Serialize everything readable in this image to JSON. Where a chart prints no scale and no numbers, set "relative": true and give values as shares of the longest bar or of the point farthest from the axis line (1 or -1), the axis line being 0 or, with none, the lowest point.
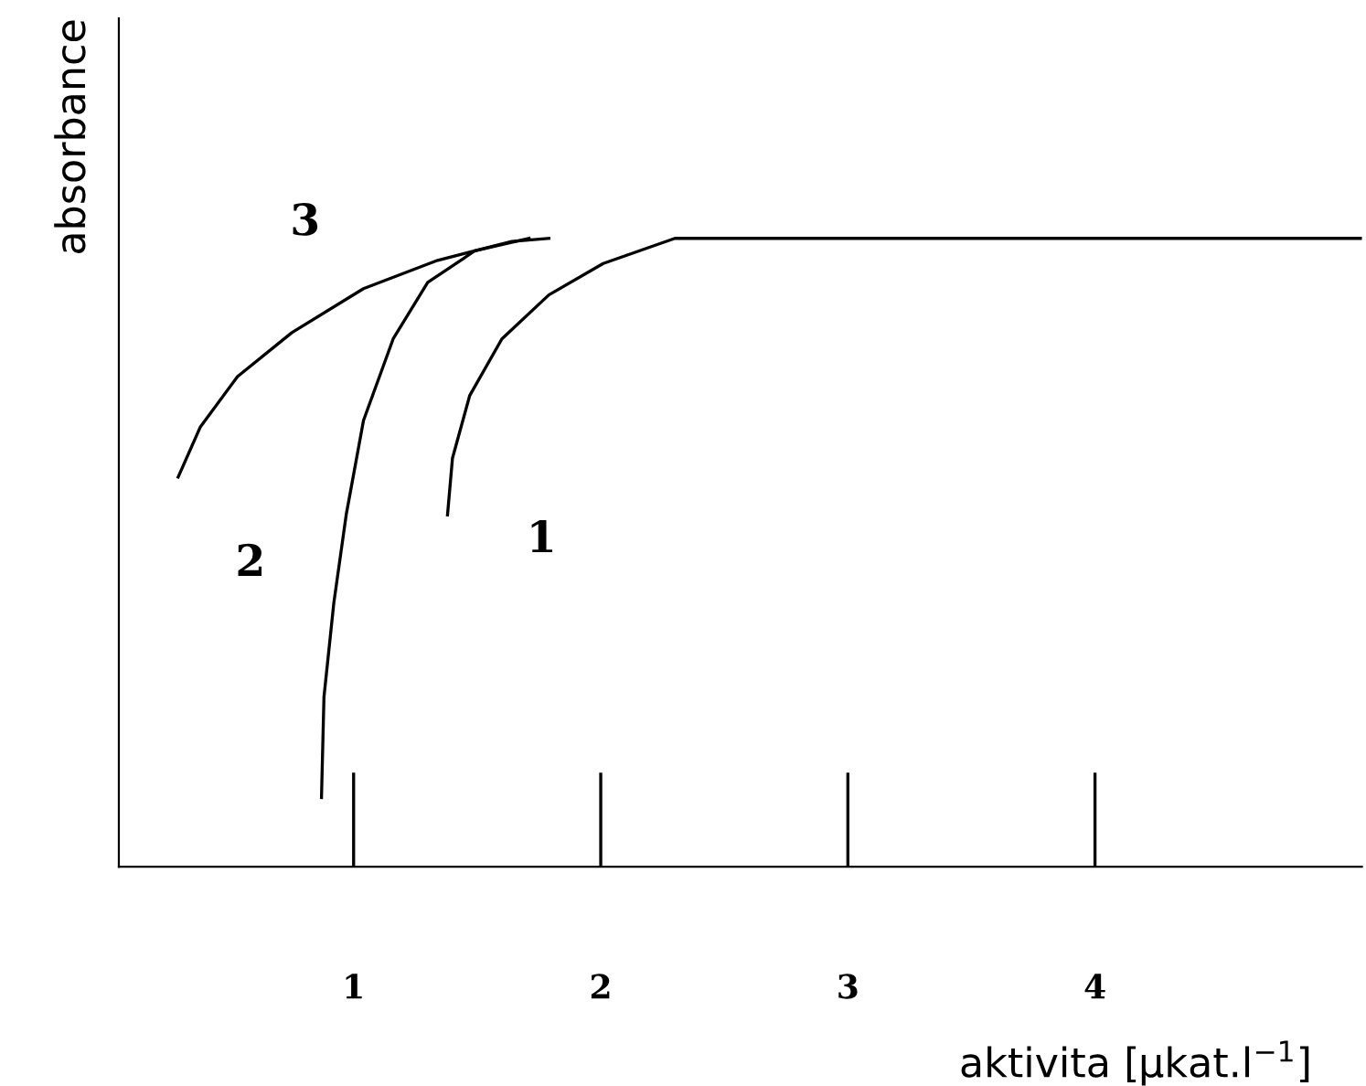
{
  "chart_data": {
    "type": "line",
    "relative": true,
    "xlabel": "aktivita [µkat.l$^{−1}$]",
    "ylabel": "absorbance",
    "xlim": [
      0.05,
      5.08
    ],
    "xticks": [
      1,
      2,
      3,
      4
    ],
    "grid": false,
    "legend": false,
    "marker": "none",
    "line_style": "solid",
    "series": [
      {
        "name": "1",
        "color": "#000000",
        "x": [
          1.38,
          1.4,
          1.47,
          1.6,
          1.79,
          2.01,
          2.3,
          5.08
        ],
        "values": [
          0.56,
          0.65,
          0.75,
          0.84,
          0.91,
          0.96,
          1.0,
          1.0
        ]
      },
      {
        "name": "2",
        "color": "#000000",
        "x": [
          0.87,
          0.88,
          0.92,
          0.97,
          1.04,
          1.16,
          1.3,
          1.49,
          1.71
        ],
        "values": [
          0.11,
          0.27,
          0.42,
          0.56,
          0.71,
          0.84,
          0.93,
          0.98,
          1.0
        ]
      },
      {
        "name": "3",
        "color": "#000000",
        "x": [
          0.29,
          0.38,
          0.53,
          0.75,
          1.04,
          1.34,
          1.64,
          1.79
        ],
        "values": [
          0.62,
          0.7,
          0.78,
          0.85,
          0.92,
          0.965,
          0.995,
          1.0
        ]
      }
    ]
  }
}
